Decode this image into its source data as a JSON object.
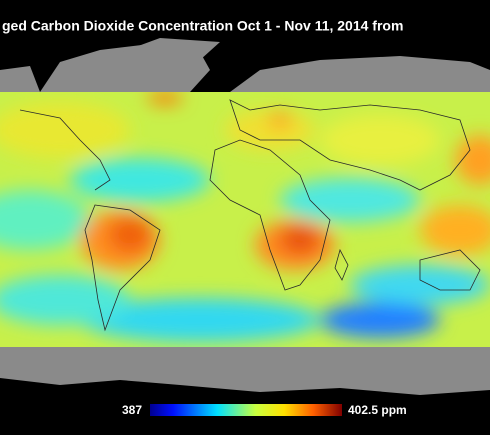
{
  "title": "ged Carbon Dioxide Concentration  Oct 1 - Nov 11, 2014  from",
  "colorbar": {
    "min": 387,
    "max": {
      "value": 402.5,
      "label": "402.5 ppm"
    }
  }
}
